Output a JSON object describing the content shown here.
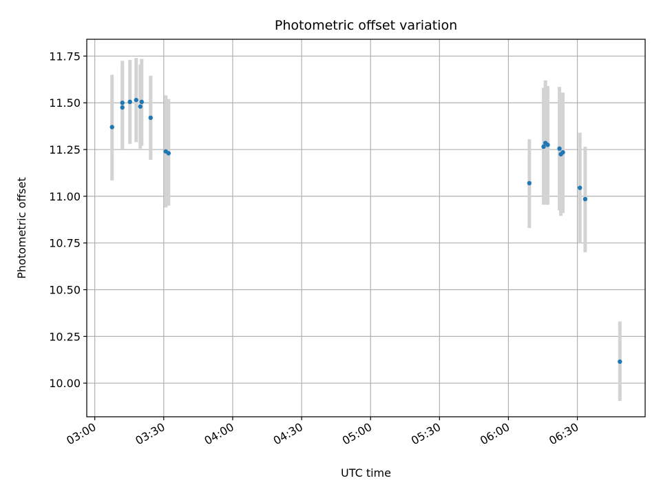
{
  "chart_data": {
    "type": "scatter",
    "title": "Photometric offset variation",
    "xlabel": "UTC time",
    "ylabel": "Photometric offset",
    "x_ticks": [
      "03:00",
      "03:30",
      "04:00",
      "04:30",
      "05:00",
      "05:30",
      "06:00",
      "06:30"
    ],
    "x_tick_minutes": [
      180,
      210,
      240,
      270,
      300,
      330,
      360,
      390
    ],
    "xlim_minutes": [
      176.5,
      419.5
    ],
    "y_ticks": [
      "10.00",
      "10.25",
      "10.50",
      "10.75",
      "11.00",
      "11.25",
      "11.50",
      "11.75"
    ],
    "y_tick_values": [
      10.0,
      10.25,
      10.5,
      10.75,
      11.0,
      11.25,
      11.5,
      11.75
    ],
    "ylim": [
      9.82,
      11.84
    ],
    "grid": true,
    "colors": {
      "points": "#1f77b4",
      "errorbars": "#d3d3d3",
      "grid": "#b0b0b0"
    },
    "points": [
      {
        "time": "03:07:30",
        "y": 11.37,
        "ylow": 11.085,
        "yhigh": 11.65
      },
      {
        "time": "03:12:00",
        "y": 11.5,
        "ylow": 11.25,
        "yhigh": 11.725
      },
      {
        "time": "03:12:00",
        "y": 11.475,
        "ylow": 11.25,
        "yhigh": 11.7
      },
      {
        "time": "03:15:18",
        "y": 11.505,
        "ylow": 11.28,
        "yhigh": 11.73
      },
      {
        "time": "03:18:00",
        "y": 11.515,
        "ylow": 11.29,
        "yhigh": 11.74
      },
      {
        "time": "03:19:48",
        "y": 11.48,
        "ylow": 11.255,
        "yhigh": 11.705
      },
      {
        "time": "03:20:24",
        "y": 11.505,
        "ylow": 11.27,
        "yhigh": 11.735
      },
      {
        "time": "03:24:18",
        "y": 11.42,
        "ylow": 11.195,
        "yhigh": 11.645
      },
      {
        "time": "03:30:54",
        "y": 11.24,
        "ylow": 10.94,
        "yhigh": 11.54
      },
      {
        "time": "03:32:06",
        "y": 11.23,
        "ylow": 10.95,
        "yhigh": 11.52
      },
      {
        "time": "06:09:06",
        "y": 11.07,
        "ylow": 10.83,
        "yhigh": 11.305
      },
      {
        "time": "06:15:18",
        "y": 11.265,
        "ylow": 10.955,
        "yhigh": 11.58
      },
      {
        "time": "06:16:06",
        "y": 11.285,
        "ylow": 10.955,
        "yhigh": 11.62
      },
      {
        "time": "06:17:06",
        "y": 11.275,
        "ylow": 10.955,
        "yhigh": 11.59
      },
      {
        "time": "06:22:12",
        "y": 11.255,
        "ylow": 10.925,
        "yhigh": 11.585
      },
      {
        "time": "06:22:48",
        "y": 11.225,
        "ylow": 10.895,
        "yhigh": 11.555
      },
      {
        "time": "06:23:42",
        "y": 11.235,
        "ylow": 10.91,
        "yhigh": 11.555
      },
      {
        "time": "06:31:06",
        "y": 11.045,
        "ylow": 10.75,
        "yhigh": 11.34
      },
      {
        "time": "06:33:24",
        "y": 10.985,
        "ylow": 10.7,
        "yhigh": 11.265
      },
      {
        "time": "06:48:30",
        "y": 10.115,
        "ylow": 9.905,
        "yhigh": 10.33
      }
    ]
  }
}
